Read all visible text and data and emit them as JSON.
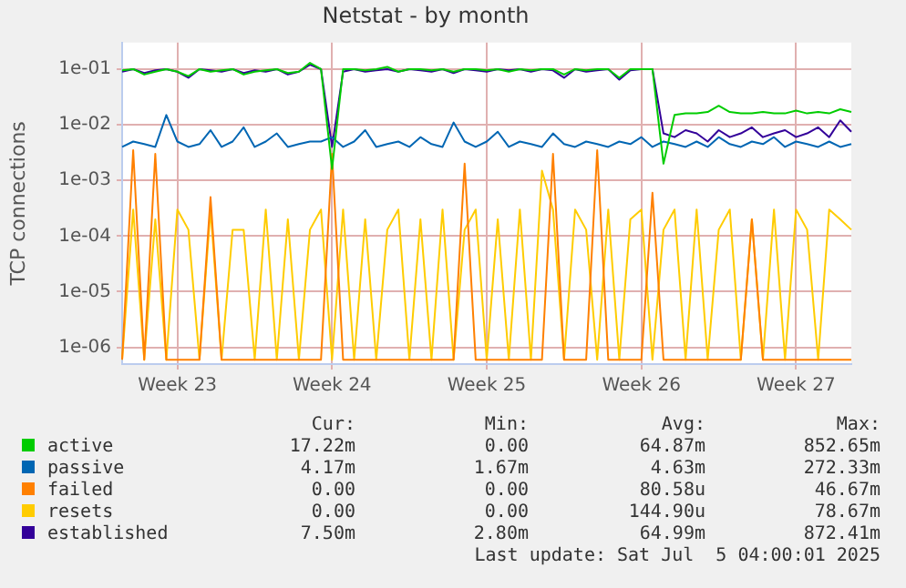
{
  "chart_data": {
    "type": "line",
    "title": "Netstat - by month",
    "ylabel": "TCP connections",
    "log": "y",
    "grid": true,
    "legend": "bottom",
    "marker": "none",
    "line_style": "solid",
    "ylim": [
      5e-07,
      0.3
    ],
    "yticks": [
      {
        "value": 1e-06,
        "label": "1e-06"
      },
      {
        "value": 1e-05,
        "label": "1e-05"
      },
      {
        "value": 0.0001,
        "label": "1e-04"
      },
      {
        "value": 0.001,
        "label": "1e-03"
      },
      {
        "value": 0.01,
        "label": "1e-02"
      },
      {
        "value": 0.1,
        "label": "1e-01"
      }
    ],
    "categories": [
      null,
      null,
      null,
      null,
      null,
      "Week 23",
      null,
      null,
      null,
      null,
      null,
      null,
      null,
      null,
      null,
      null,
      null,
      null,
      null,
      "Week 24",
      null,
      null,
      null,
      null,
      null,
      null,
      null,
      null,
      null,
      null,
      null,
      null,
      null,
      "Week 25",
      null,
      null,
      null,
      null,
      null,
      null,
      null,
      null,
      null,
      null,
      null,
      null,
      null,
      "Week 26",
      null,
      null,
      null,
      null,
      null,
      null,
      null,
      null,
      null,
      null,
      null,
      null,
      null,
      "Week 27",
      null,
      null,
      null,
      null,
      null
    ],
    "series": [
      {
        "name": "active",
        "color": "#00cc00",
        "values": [
          0.095,
          0.1,
          0.08,
          0.09,
          0.1,
          0.09,
          0.075,
          0.1,
          0.09,
          0.095,
          0.1,
          0.08,
          0.09,
          0.095,
          0.1,
          0.085,
          0.09,
          0.13,
          0.1,
          0.0016,
          0.1,
          0.1,
          0.095,
          0.1,
          0.11,
          0.09,
          0.1,
          0.1,
          0.095,
          0.1,
          0.09,
          0.1,
          0.1,
          0.095,
          0.1,
          0.09,
          0.1,
          0.095,
          0.1,
          0.1,
          0.08,
          0.1,
          0.095,
          0.1,
          0.1,
          0.07,
          0.1,
          0.1,
          0.1,
          0.002,
          0.015,
          0.016,
          0.016,
          0.017,
          0.022,
          0.017,
          0.016,
          0.016,
          0.017,
          0.016,
          0.016,
          0.018,
          0.016,
          0.017,
          0.016,
          0.019,
          0.017
        ]
      },
      {
        "name": "passive",
        "color": "#0066b3",
        "values": [
          0.004,
          0.005,
          0.0045,
          0.004,
          0.015,
          0.005,
          0.004,
          0.0045,
          0.008,
          0.004,
          0.005,
          0.009,
          0.004,
          0.005,
          0.007,
          0.004,
          0.0045,
          0.005,
          0.005,
          0.006,
          0.004,
          0.005,
          0.008,
          0.004,
          0.0045,
          0.005,
          0.004,
          0.006,
          0.0045,
          0.004,
          0.011,
          0.005,
          0.004,
          0.005,
          0.0075,
          0.004,
          0.005,
          0.0045,
          0.004,
          0.007,
          0.0045,
          0.004,
          0.005,
          0.0045,
          0.004,
          0.005,
          0.0045,
          0.006,
          0.004,
          0.005,
          0.0045,
          0.004,
          0.005,
          0.004,
          0.006,
          0.0045,
          0.004,
          0.005,
          0.0045,
          0.006,
          0.004,
          0.005,
          0.0045,
          0.004,
          0.005,
          0.004,
          0.0045
        ]
      },
      {
        "name": "failed",
        "color": "#ff8000",
        "values": [
          6e-07,
          0.0035,
          6e-07,
          0.003,
          6e-07,
          6e-07,
          6e-07,
          6e-07,
          0.0005,
          6e-07,
          6e-07,
          6e-07,
          6e-07,
          6e-07,
          6e-07,
          6e-07,
          6e-07,
          6e-07,
          6e-07,
          0.003,
          6e-07,
          6e-07,
          6e-07,
          6e-07,
          6e-07,
          6e-07,
          6e-07,
          6e-07,
          6e-07,
          6e-07,
          6e-07,
          0.002,
          6e-07,
          6e-07,
          6e-07,
          6e-07,
          6e-07,
          6e-07,
          6e-07,
          0.003,
          6e-07,
          6e-07,
          6e-07,
          0.0035,
          6e-07,
          6e-07,
          6e-07,
          6e-07,
          0.0006,
          6e-07,
          6e-07,
          6e-07,
          6e-07,
          6e-07,
          6e-07,
          6e-07,
          6e-07,
          0.0002,
          6e-07,
          6e-07,
          6e-07,
          6e-07,
          6e-07,
          6e-07,
          6e-07,
          6e-07,
          6e-07
        ]
      },
      {
        "name": "resets",
        "color": "#ffcc00",
        "values": [
          6e-07,
          0.0003,
          6e-07,
          0.0002,
          6e-07,
          0.0003,
          0.00013,
          6e-07,
          0.0003,
          6e-07,
          0.00013,
          0.00013,
          6e-07,
          0.0003,
          6e-07,
          0.0002,
          6e-07,
          0.00013,
          0.0003,
          6e-07,
          0.0003,
          6e-07,
          0.0002,
          6e-07,
          0.00013,
          0.0003,
          6e-07,
          0.0002,
          6e-07,
          0.0003,
          6e-07,
          0.00013,
          0.0003,
          6e-07,
          0.0002,
          6e-07,
          0.0003,
          6e-07,
          0.0015,
          0.0003,
          6e-07,
          0.0003,
          0.00013,
          6e-07,
          0.0003,
          6e-07,
          0.0002,
          0.0003,
          6e-07,
          0.00013,
          0.0003,
          6e-07,
          0.0003,
          6e-07,
          0.00013,
          0.0003,
          6e-07,
          0.0002,
          6e-07,
          0.0003,
          6e-07,
          0.0003,
          0.00013,
          6e-07,
          0.0003,
          0.0002,
          0.00013
        ]
      },
      {
        "name": "established",
        "color": "#330099",
        "values": [
          0.09,
          0.1,
          0.085,
          0.095,
          0.1,
          0.09,
          0.07,
          0.1,
          0.095,
          0.09,
          0.1,
          0.085,
          0.095,
          0.09,
          0.1,
          0.08,
          0.09,
          0.12,
          0.1,
          0.004,
          0.09,
          0.1,
          0.09,
          0.095,
          0.1,
          0.09,
          0.1,
          0.095,
          0.09,
          0.1,
          0.085,
          0.1,
          0.095,
          0.09,
          0.1,
          0.095,
          0.1,
          0.09,
          0.1,
          0.095,
          0.07,
          0.1,
          0.09,
          0.095,
          0.1,
          0.065,
          0.095,
          0.1,
          0.1,
          0.007,
          0.006,
          0.008,
          0.007,
          0.005,
          0.008,
          0.006,
          0.007,
          0.009,
          0.006,
          0.007,
          0.008,
          0.006,
          0.007,
          0.009,
          0.006,
          0.012,
          0.0075
        ]
      }
    ],
    "annotations": [
      "Cur:",
      "Min:",
      "Avg:",
      "Max:",
      "17.22m",
      "0.00",
      "64.87m",
      "852.65m",
      "4.17m",
      "1.67m",
      "4.63m",
      "272.33m",
      "0.00",
      "0.00",
      "80.58u",
      "46.67m",
      "0.00",
      "0.00",
      "144.90u",
      "78.67m",
      "7.50m",
      "2.80m",
      "64.99m",
      "872.41m",
      "Last update: Sat Jul  5 04:00:01 2025"
    ]
  }
}
